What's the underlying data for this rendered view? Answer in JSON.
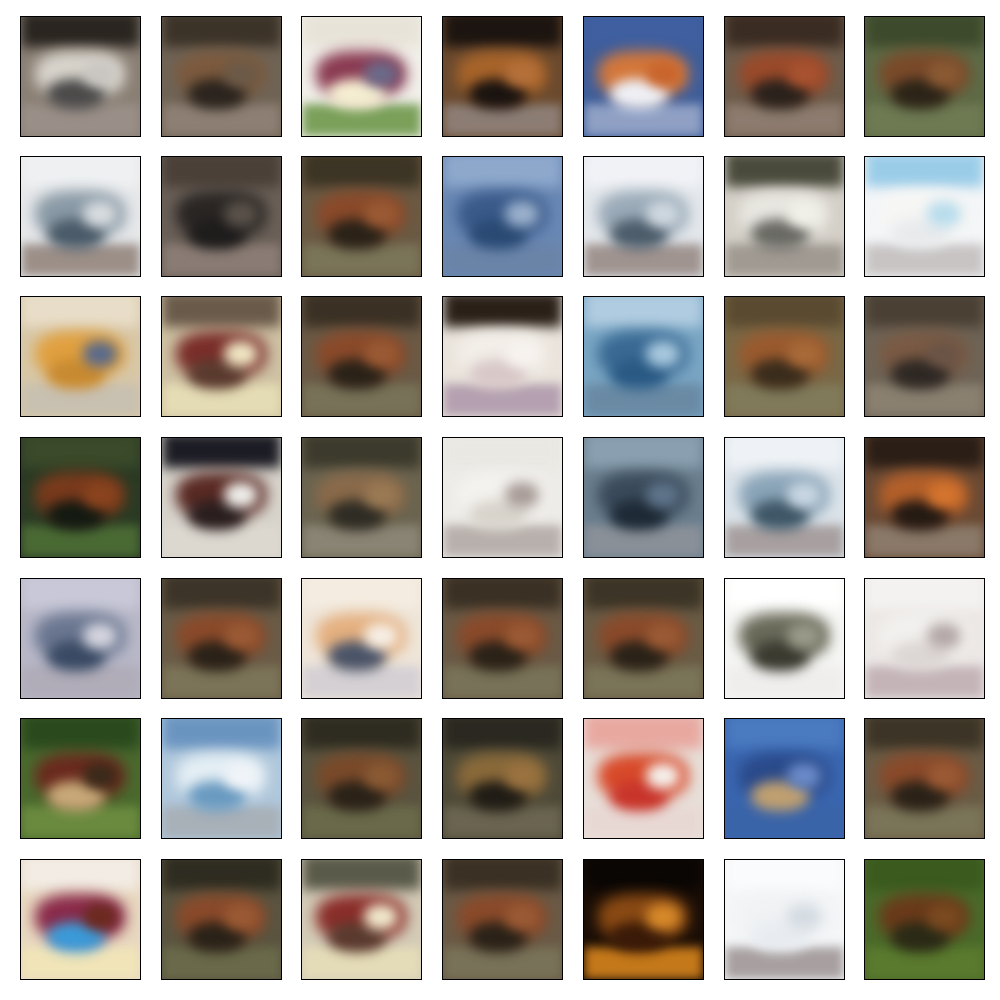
{
  "grid": {
    "rows": 7,
    "cols": 7,
    "tiles": [
      {
        "bg": "#8a7f74",
        "top": "#2a2520",
        "mid": "#d8d4cc",
        "ground": "#9a8f88",
        "blob": "#4b4a4a",
        "blob2": "#c9c6c2"
      },
      {
        "bg": "#6f6456",
        "top": "#3c3328",
        "mid": "#7c5a3e",
        "ground": "#8d7f73",
        "blob": "#2b241e",
        "blob2": "#6b5a48"
      },
      {
        "bg": "#f2f0ea",
        "top": "#e8e3d8",
        "mid": "#8a3a52",
        "ground": "#7aa05a",
        "blob": "#f5eed2",
        "blob2": "#6b6a8a"
      },
      {
        "bg": "#6b4a2e",
        "top": "#1c1410",
        "mid": "#a8642a",
        "ground": "#8c7d74",
        "blob": "#191310",
        "blob2": "#b5703a"
      },
      {
        "bg": "#3f5e9a",
        "top": "#3f5fa0",
        "mid": "#d4773a",
        "ground": "#8fa0c4",
        "blob": "#eef0f6",
        "blob2": "#c8642c"
      },
      {
        "bg": "#6e5c4b",
        "top": "#3a2c22",
        "mid": "#9a4a2a",
        "ground": "#8c7b6e",
        "blob": "#2a221c",
        "blob2": "#a85230"
      },
      {
        "bg": "#5e6a46",
        "top": "#3d4a2c",
        "mid": "#7a4a2a",
        "ground": "#6e7a52",
        "blob": "#2c2418",
        "blob2": "#8a5a34"
      },
      {
        "bg": "#e6e8ea",
        "top": "#eef0f2",
        "mid": "#8a9aa6",
        "ground": "#9c8f88",
        "blob": "#4a5a68",
        "blob2": "#d8dce0"
      },
      {
        "bg": "#6a6058",
        "top": "#4a4038",
        "mid": "#2a2624",
        "ground": "#8a7c74",
        "blob": "#1e1c1c",
        "blob2": "#5a524a"
      },
      {
        "bg": "#6a5a44",
        "top": "#3c3424",
        "mid": "#8a4a2a",
        "ground": "#7a7458",
        "blob": "#2a2218",
        "blob2": "#9a5a34"
      },
      {
        "bg": "#6a88b4",
        "top": "#8ea8cc",
        "mid": "#3a5a8a",
        "ground": "#6a84a8",
        "blob": "#2a4a74",
        "blob2": "#9ab0cc"
      },
      {
        "bg": "#e4e8ec",
        "top": "#f0f2f6",
        "mid": "#9aaab8",
        "ground": "#a09490",
        "blob": "#4c5c6a",
        "blob2": "#cfd8e0"
      },
      {
        "bg": "#d4d0c8",
        "top": "#4a4a3c",
        "mid": "#e8e6e0",
        "ground": "#a09a92",
        "blob": "#6a6a64",
        "blob2": "#f0efe8"
      },
      {
        "bg": "#f4f6f8",
        "top": "#9acce8",
        "mid": "#f6f6f4",
        "ground": "#c8c4c4",
        "blob": "#e8eaec",
        "blob2": "#b8dcec"
      },
      {
        "bg": "#d8c8a8",
        "top": "#e8ddc8",
        "mid": "#e0a040",
        "ground": "#c8c0b0",
        "blob": "#c88a30",
        "blob2": "#5a6a8a"
      },
      {
        "bg": "#cfc2a4",
        "top": "#6a5a4a",
        "mid": "#7a2e2a",
        "ground": "#e4dcb4",
        "blob": "#5a3a2e",
        "blob2": "#efe6c4"
      },
      {
        "bg": "#6a5a46",
        "top": "#3a3024",
        "mid": "#8a4a2a",
        "ground": "#787258",
        "blob": "#2a2218",
        "blob2": "#9a5a34"
      },
      {
        "bg": "#eae4dc",
        "top": "#2a2018",
        "mid": "#f2eee8",
        "ground": "#b4a0b0",
        "blob": "#d8c8c8",
        "blob2": "#f6f2ee"
      },
      {
        "bg": "#7aa6c4",
        "top": "#b0cce0",
        "mid": "#3a6a94",
        "ground": "#6a8aa4",
        "blob": "#2a5a84",
        "blob2": "#a8c8de"
      },
      {
        "bg": "#7a6846",
        "top": "#5a4a30",
        "mid": "#9a5a2e",
        "ground": "#807a5a",
        "blob": "#3a2c1c",
        "blob2": "#a86a38"
      },
      {
        "bg": "#6e6456",
        "top": "#4a4034",
        "mid": "#7a5a44",
        "ground": "#8a8070",
        "blob": "#2e2824",
        "blob2": "#6a5446"
      },
      {
        "bg": "#2a3a24",
        "top": "#3a4a2a",
        "mid": "#7a3a1c",
        "ground": "#4a6a34",
        "blob": "#141a12",
        "blob2": "#8a441e"
      },
      {
        "bg": "#d8d4cc",
        "top": "#1c1c24",
        "mid": "#5a2a24",
        "ground": "#dcd8d0",
        "blob": "#2a1e1e",
        "blob2": "#efeeea"
      },
      {
        "bg": "#6a6450",
        "top": "#3c3a2c",
        "mid": "#8a6a4a",
        "ground": "#8a8474",
        "blob": "#2e2c24",
        "blob2": "#9a7a54"
      },
      {
        "bg": "#eeece8",
        "top": "#eae8e2",
        "mid": "#f4f2ee",
        "ground": "#b8b0ac",
        "blob": "#d8d4cc",
        "blob2": "#a89c98"
      },
      {
        "bg": "#6a7e8e",
        "top": "#8aa0b0",
        "mid": "#3a4a5a",
        "ground": "#8a9098",
        "blob": "#1e2a36",
        "blob2": "#5e748a"
      },
      {
        "bg": "#dce4ea",
        "top": "#eef2f6",
        "mid": "#8aa4b8",
        "ground": "#a8a0a0",
        "blob": "#3e5666",
        "blob2": "#c8d6e2"
      },
      {
        "bg": "#6a4a34",
        "top": "#2a1e16",
        "mid": "#b4602a",
        "ground": "#8a7868",
        "blob": "#241a14",
        "blob2": "#d4742e"
      },
      {
        "bg": "#b8b8c8",
        "top": "#c8c8d8",
        "mid": "#6a7690",
        "ground": "#b0acb8",
        "blob": "#3a4a64",
        "blob2": "#d4d4de"
      },
      {
        "bg": "#6a5c48",
        "top": "#3c3428",
        "mid": "#8a4a2a",
        "ground": "#7c7458",
        "blob": "#2a2218",
        "blob2": "#9a5a34"
      },
      {
        "bg": "#efe6da",
        "top": "#f4ece0",
        "mid": "#e4b080",
        "ground": "#d4d0d4",
        "blob": "#4a5468",
        "blob2": "#f6eee4"
      },
      {
        "bg": "#6a5a46",
        "top": "#3a3024",
        "mid": "#8a4a2a",
        "ground": "#787258",
        "blob": "#2a2218",
        "blob2": "#9a5a34"
      },
      {
        "bg": "#6a5c46",
        "top": "#3c3426",
        "mid": "#8a4a2a",
        "ground": "#7a7458",
        "blob": "#2a2218",
        "blob2": "#9a5a34"
      },
      {
        "bg": "#f6f6f4",
        "top": "#ffffff",
        "mid": "#6a6a5a",
        "ground": "#efeeec",
        "blob": "#3a3a30",
        "blob2": "#9a9a8a"
      },
      {
        "bg": "#ece8e6",
        "top": "#f4f2f0",
        "mid": "#f2f0ee",
        "ground": "#c4b4b8",
        "blob": "#dcd6d4",
        "blob2": "#b4a8a8"
      },
      {
        "bg": "#4a6a2e",
        "top": "#2a4a1e",
        "mid": "#6a2a1e",
        "ground": "#6a8a3e",
        "blob": "#c8a878",
        "blob2": "#3a2a1a"
      },
      {
        "bg": "#b0c8dc",
        "top": "#6a94c0",
        "mid": "#e4eef4",
        "ground": "#a8b0b8",
        "blob": "#6a9ac0",
        "blob2": "#f0f4f8"
      },
      {
        "bg": "#5a5440",
        "top": "#2e2c20",
        "mid": "#7a4a2a",
        "ground": "#6a6a4a",
        "blob": "#2a2218",
        "blob2": "#8a5a34"
      },
      {
        "bg": "#4e4a38",
        "top": "#2a2820",
        "mid": "#8a6a3a",
        "ground": "#6a6450",
        "blob": "#201c16",
        "blob2": "#9a7240"
      },
      {
        "bg": "#e8e0da",
        "top": "#e8a8a0",
        "mid": "#d84a2a",
        "ground": "#e8d8d4",
        "blob": "#c8342a",
        "blob2": "#f4f0ec"
      },
      {
        "bg": "#3a66b0",
        "top": "#4a7ac0",
        "mid": "#2a4a8a",
        "ground": "#3a64a8",
        "blob": "#c0a070",
        "blob2": "#6a8ac8"
      },
      {
        "bg": "#6a5c46",
        "top": "#3c3426",
        "mid": "#8a4a2a",
        "ground": "#7a7458",
        "blob": "#2a2218",
        "blob2": "#9a5a34"
      },
      {
        "bg": "#e8d8c0",
        "top": "#f2ece4",
        "mid": "#8a2a4a",
        "ground": "#f0e4b8",
        "blob": "#3a9ad8",
        "blob2": "#6a2a1e"
      },
      {
        "bg": "#5a5440",
        "top": "#2e2c20",
        "mid": "#8a4a2a",
        "ground": "#6a6a4a",
        "blob": "#2a2218",
        "blob2": "#9a5a34"
      },
      {
        "bg": "#d4ccb8",
        "top": "#5a5a4a",
        "mid": "#8a2e2a",
        "ground": "#e4dcb8",
        "blob": "#5a3a2e",
        "blob2": "#f0e8cc"
      },
      {
        "bg": "#6a5a46",
        "top": "#3a3024",
        "mid": "#8a4a2a",
        "ground": "#787258",
        "blob": "#2a2218",
        "blob2": "#9a5a34"
      },
      {
        "bg": "#1a0e06",
        "top": "#0a0604",
        "mid": "#8a4a14",
        "ground": "#c4781a",
        "blob": "#3a1a08",
        "blob2": "#d88a2a"
      },
      {
        "bg": "#f4f6f8",
        "top": "#fafbfc",
        "mid": "#f0f2f4",
        "ground": "#a8a0a0",
        "blob": "#e8ecf0",
        "blob2": "#d4dbe2"
      },
      {
        "bg": "#4a6a2a",
        "top": "#3a5a1e",
        "mid": "#6a3a1a",
        "ground": "#5a7a2e",
        "blob": "#2a2a16",
        "blob2": "#7a4a20"
      }
    ]
  }
}
